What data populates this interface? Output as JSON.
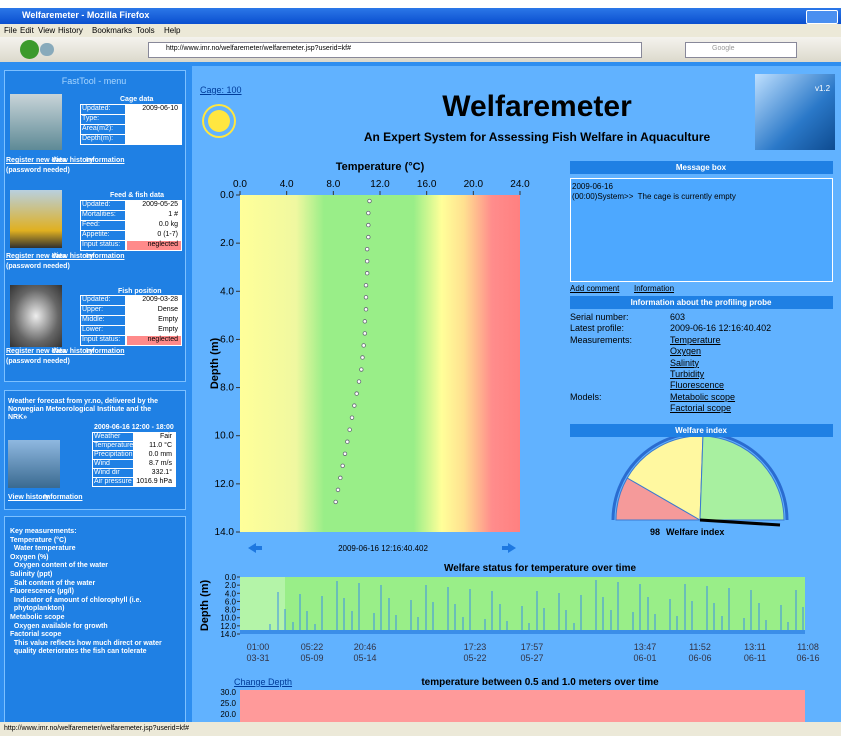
{
  "browser": {
    "window_title": "Welfaremeter - Mozilla Firefox",
    "menu": [
      "File",
      "Edit",
      "View",
      "History",
      "Bookmarks",
      "Tools",
      "Help"
    ],
    "url": "http://www.imr.no/welfaremeter/welfaremeter.jsp?userid=kf#",
    "search_placeholder": "Google",
    "status_url": "http://www.imr.no/welfaremeter/welfaremeter.jsp?userid=kf#"
  },
  "sidebar": {
    "title": "FastTool - menu",
    "links": [
      "Register new data",
      "View history",
      "Information"
    ],
    "password_note": "(password needed)",
    "cage": {
      "heading": "Cage data",
      "rows": [
        [
          "Updated:",
          "2009-06-10"
        ],
        [
          "Type:"
        ],
        [
          "Area(m2):"
        ],
        [
          "Depth(m):"
        ]
      ]
    },
    "feed": {
      "heading": "Feed & fish data",
      "rows": [
        [
          "Updated:",
          "2009-05-25"
        ],
        [
          "Mortalities:",
          "1 #"
        ],
        [
          "Feed:",
          "0.0 kg"
        ],
        [
          "Appetite:",
          "0 (1-7)"
        ],
        [
          "Input status:",
          "neglected"
        ]
      ]
    },
    "fish": {
      "heading": "Fish position",
      "rows": [
        [
          "Updated:",
          "2009-03-28"
        ],
        [
          "Upper:",
          "Dense"
        ],
        [
          "Middle:",
          "Empty"
        ],
        [
          "Lower:",
          "Empty"
        ],
        [
          "Input status:",
          "neglected"
        ]
      ]
    },
    "weather": {
      "intro": [
        "Weather forecast from yr.no, delivered by the",
        "Norwegian Meteorological Institute and the",
        "NRK»"
      ],
      "period": "2009-06-16 12:00 - 18:00",
      "rows": [
        [
          "Weather",
          "Fair"
        ],
        [
          "Temperature",
          "11.0 °C"
        ],
        [
          "Precipitation",
          "0.0 mm"
        ],
        [
          "Wind",
          "8.7 m/s"
        ],
        [
          "Wind dir",
          "332.1°"
        ],
        [
          "Air pressure",
          "1016.9 hPa"
        ]
      ],
      "links": [
        "View history",
        "Information"
      ]
    },
    "key": [
      "Key measurements:",
      "Temperature (°C)",
      "  Water temperature",
      "Oxygen (%)",
      "  Oxygen content of the water",
      "Salinity (ppt)",
      "  Salt content of the water",
      "Fluorescence (µg/l)",
      "  Indicator of amount of chlorophyll (i.e.",
      "  phytoplankton)",
      "Metabolic scope",
      "  Oxygen available for growth",
      "Factorial scope",
      "  This value reflects how much direct or water",
      "  quality deteriorates the fish can tolerate"
    ]
  },
  "header": {
    "cage_link": "Cage: 100",
    "title": "Welfaremeter",
    "subtitle": "An Expert System for Assessing Fish Welfare in Aquaculture",
    "version": "v1.2"
  },
  "temperature_chart": {
    "title": "Temperature (°C)",
    "ylabel": "Depth (m)",
    "xlim": [
      0,
      24
    ],
    "ylim": [
      0,
      14
    ],
    "xticks": [
      {
        "value": 0,
        "label": "0.0"
      },
      {
        "value": 4,
        "label": "4.0"
      },
      {
        "value": 8,
        "label": "8.0"
      },
      {
        "value": 12,
        "label": "12.0"
      },
      {
        "value": 16,
        "label": "16.0"
      },
      {
        "value": 20,
        "label": "20.0"
      },
      {
        "value": 24,
        "label": "24.0"
      }
    ],
    "yticks": [
      {
        "value": 0,
        "label": "0.0"
      },
      {
        "value": 2,
        "label": "2.0"
      },
      {
        "value": 4,
        "label": "4.0"
      },
      {
        "value": 6,
        "label": "6.0"
      },
      {
        "value": 8,
        "label": "8.0"
      },
      {
        "value": 10,
        "label": "10.0"
      },
      {
        "value": 12,
        "label": "12.0"
      },
      {
        "value": 14,
        "label": "14.0"
      }
    ],
    "x": [
      11.1,
      11.0,
      11.0,
      11.0,
      10.9,
      10.9,
      10.9,
      10.8,
      10.8,
      10.8,
      10.7,
      10.7,
      10.6,
      10.5,
      10.4,
      10.2,
      10.0,
      9.8,
      9.6,
      9.4,
      9.2,
      9.0,
      8.8,
      8.6,
      8.4,
      8.2
    ],
    "y": [
      0.25,
      0.75,
      1.25,
      1.75,
      2.25,
      2.75,
      3.25,
      3.75,
      4.25,
      4.75,
      5.25,
      5.75,
      6.25,
      6.75,
      7.25,
      7.75,
      8.25,
      8.75,
      9.25,
      9.75,
      10.25,
      10.75,
      11.25,
      11.75,
      12.25,
      12.75
    ],
    "timestamp": "2009-06-16 12:16:40.402"
  },
  "messages": {
    "heading": "Message box",
    "date": "2009-06-16",
    "text": "(00:00)System>>  The cage is currently empty",
    "links": [
      "Add comment",
      "Information"
    ]
  },
  "probe": {
    "heading": "Information about the profiling probe",
    "rows": [
      [
        "Serial number:",
        "603"
      ],
      [
        "Latest profile:",
        "2009-06-16 12:16:40.402"
      ],
      [
        "Measurements:",
        "Temperature"
      ],
      [
        null,
        "Oxygen"
      ],
      [
        null,
        "Salinity"
      ],
      [
        null,
        "Turbidity"
      ],
      [
        null,
        "Fluorescence"
      ],
      [
        "Models:",
        "Metabolic scope"
      ],
      [
        null,
        "Factorial scope"
      ]
    ]
  },
  "welfare": {
    "heading": "Welfare index",
    "value": 98,
    "label": "Welfare index"
  },
  "status_chart": {
    "title": "Welfare status for temperature over time",
    "ylabel": "Depth (m)",
    "yticks": [
      {
        "value": 0,
        "label": "0.0"
      },
      {
        "value": 2,
        "label": "2.0"
      },
      {
        "value": 4,
        "label": "4.0"
      },
      {
        "value": 6,
        "label": "6.0"
      },
      {
        "value": 8,
        "label": "8.0"
      },
      {
        "value": 10,
        "label": "10.0"
      },
      {
        "value": 12,
        "label": "12.0"
      },
      {
        "value": 14,
        "label": "14.0"
      }
    ],
    "ylim": [
      0,
      14
    ],
    "xticks": [
      [
        "01:00",
        "03-31"
      ],
      [
        "05:22",
        "05-09"
      ],
      [
        "20:46",
        "05-14"
      ],
      [
        "17:23",
        "05-22"
      ],
      [
        "17:57",
        "05-27"
      ],
      [
        "13:47",
        "06-01"
      ],
      [
        "11:52",
        "06-06"
      ],
      [
        "13:11",
        "06-11"
      ],
      [
        "11:08",
        "06-16"
      ]
    ]
  },
  "depth_chart": {
    "link": "Change Depth",
    "title": "temperature between 0.5 and 1.0 meters over time",
    "yticks": [
      {
        "value": 30,
        "label": "30.0"
      },
      {
        "value": 25,
        "label": "25.0"
      },
      {
        "value": 20,
        "label": "20.0"
      }
    ]
  }
}
